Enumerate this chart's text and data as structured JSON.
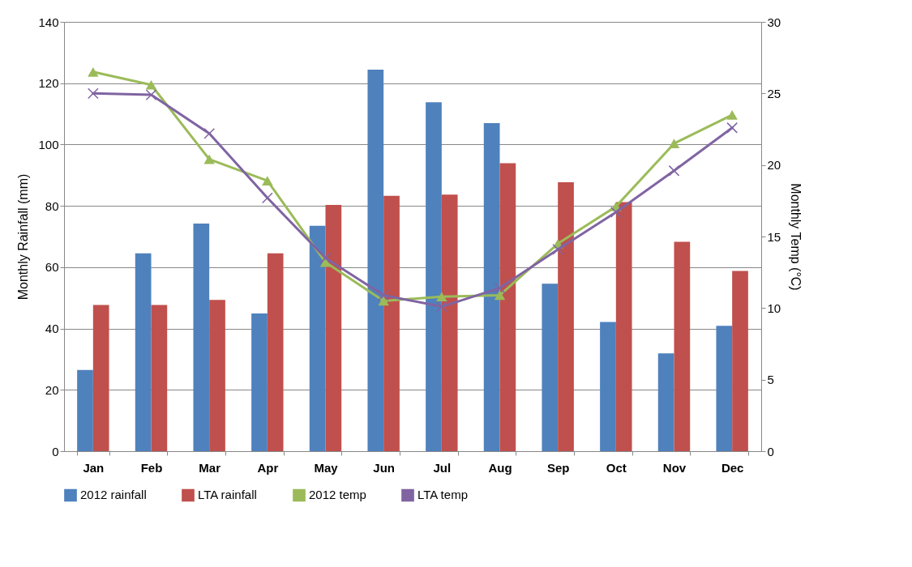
{
  "chart_data": {
    "type": "bar",
    "xlabel": null,
    "ylabel": "Monthly Rainfall (mm)",
    "y2label": "Monthly Temp (°C)",
    "categories": [
      "Jan",
      "Feb",
      "Mar",
      "Apr",
      "May",
      "Jun",
      "Jul",
      "Aug",
      "Sep",
      "Oct",
      "Nov",
      "Dec"
    ],
    "ylim": [
      0,
      140
    ],
    "yticks": [
      0,
      20,
      40,
      60,
      80,
      100,
      120,
      140
    ],
    "y2lim": [
      0,
      30
    ],
    "y2ticks": [
      0,
      5,
      10,
      15,
      20,
      25,
      30
    ],
    "grid": "y",
    "legend": "bottom",
    "series": [
      {
        "name": "2012 rainfall",
        "color": "#4f81bd",
        "values": [
          26.5,
          64.5,
          74.2,
          44.9,
          73.5,
          124.4,
          113.8,
          107,
          54.6,
          42.1,
          31.9,
          40.9
        ]
      },
      {
        "name": "LTA rainfall",
        "color": "#c0504d",
        "values": [
          47.7,
          47.7,
          49.3,
          64.5,
          80.3,
          83.3,
          83.7,
          93.9,
          87.7,
          81.2,
          68.3,
          58.8
        ]
      },
      {
        "name": "2012 temp",
        "type": "line",
        "axis": "y2",
        "marker": "triangle",
        "color": "#9bbb59",
        "values": [
          26.5,
          25.6,
          20.4,
          18.9,
          13.2,
          10.5,
          10.8,
          10.9,
          14.5,
          17.1,
          21.5,
          23.5
        ]
      },
      {
        "name": "LTA temp",
        "type": "line",
        "axis": "y2",
        "marker": "cross",
        "color": "#8064a2",
        "values": [
          25.0,
          24.9,
          22.2,
          17.7,
          13.5,
          10.9,
          10.1,
          11.4,
          14.1,
          16.7,
          19.6,
          22.6
        ]
      }
    ]
  }
}
